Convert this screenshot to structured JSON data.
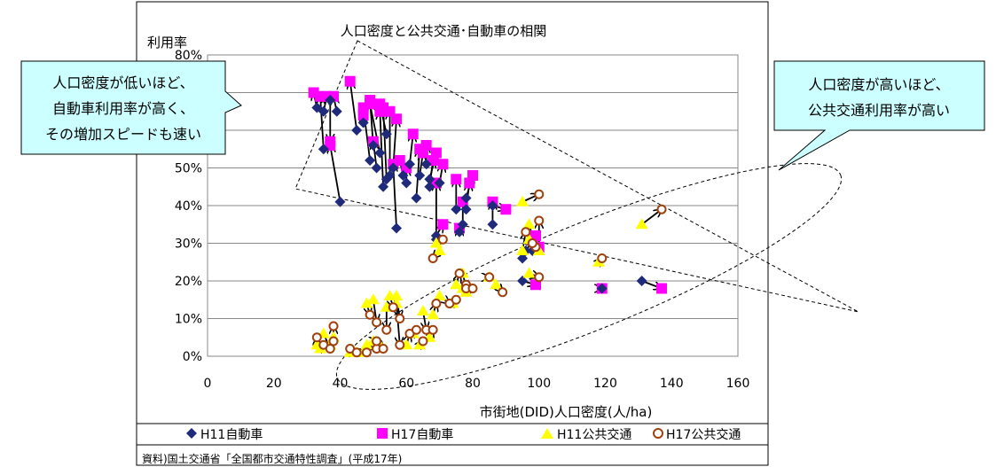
{
  "chart_data": {
    "type": "scatter",
    "title": "人口密度と公共交通･自動車の相関",
    "xlabel": "市街地(DID)人口密度(人/ha)",
    "ylabel": "利用率",
    "xlim": [
      0,
      160
    ],
    "ylim": [
      0,
      80
    ],
    "x_ticks": [
      "0",
      "20",
      "40",
      "60",
      "80",
      "100",
      "120",
      "140",
      "160"
    ],
    "y_ticks": [
      "0%",
      "10%",
      "20%",
      "30%",
      "40%",
      "50%",
      "60%",
      "70%",
      "80%"
    ],
    "grid": "horizontal",
    "legend": [
      "H11自動車",
      "H17自動車",
      "H11公共交通",
      "H17公共交通"
    ],
    "source_note": "資料)国土交通省「全国都市交通特性調査」(平成17年)",
    "callouts": {
      "left": [
        "人口密度が低いほど、",
        "自動車利用率が高く、",
        "その増加スピードも速い"
      ],
      "right": [
        "人口密度が高いほど、",
        "公共交通利用率が高い"
      ]
    },
    "colors": {
      "h11_car": "#1f2a7a",
      "h17_car": "#ff00ff",
      "h11_transit": "#ffff00",
      "h17_transit": "#a0410d",
      "callout_fill": "#ccffff"
    },
    "car_pairs": [
      [
        33,
        66,
        32,
        70
      ],
      [
        35,
        55,
        34,
        69
      ],
      [
        35,
        65,
        36,
        69
      ],
      [
        37,
        68,
        37,
        57
      ],
      [
        39,
        65,
        38,
        69
      ],
      [
        40,
        41,
        37,
        56
      ],
      [
        45,
        60,
        43,
        73
      ],
      [
        47,
        62,
        47,
        64
      ],
      [
        49,
        52,
        47,
        66
      ],
      [
        50,
        56,
        49,
        68
      ],
      [
        51,
        50,
        50,
        57
      ],
      [
        52,
        54,
        49,
        67
      ],
      [
        53,
        45,
        52,
        65
      ],
      [
        54,
        59,
        52,
        67
      ],
      [
        54,
        47,
        53,
        66
      ],
      [
        55,
        48,
        55,
        65
      ],
      [
        56,
        50,
        57,
        63
      ],
      [
        57,
        34,
        56,
        51
      ],
      [
        59,
        48,
        58,
        52
      ],
      [
        60,
        46,
        60,
        50
      ],
      [
        61,
        51,
        62,
        59
      ],
      [
        63,
        42,
        64,
        55
      ],
      [
        64,
        48,
        65,
        54
      ],
      [
        66,
        51,
        66,
        56
      ],
      [
        67,
        45,
        68,
        52
      ],
      [
        67,
        47,
        69,
        54
      ],
      [
        69,
        31,
        69,
        46
      ],
      [
        70,
        46,
        71,
        51
      ],
      [
        69,
        32,
        71,
        35
      ],
      [
        75,
        39,
        75,
        47
      ],
      [
        76,
        33,
        76,
        34
      ],
      [
        77,
        35,
        77,
        41
      ],
      [
        78,
        39,
        79,
        46
      ],
      [
        78,
        42,
        80,
        48
      ],
      [
        86,
        35,
        86,
        41
      ],
      [
        86,
        40,
        90,
        39
      ],
      [
        95,
        20,
        99,
        19
      ],
      [
        95,
        26,
        98,
        31
      ],
      [
        96,
        28,
        99,
        32
      ],
      [
        98,
        28,
        100,
        29
      ],
      [
        119,
        18,
        119,
        18
      ],
      [
        131,
        20,
        137,
        18
      ]
    ],
    "transit_pairs": [
      [
        33,
        3,
        33,
        5
      ],
      [
        34,
        2,
        35,
        3
      ],
      [
        35,
        6,
        37,
        2
      ],
      [
        37,
        3,
        38,
        4
      ],
      [
        38,
        5,
        38,
        8
      ],
      [
        43,
        1,
        43,
        2
      ],
      [
        45,
        1,
        45,
        1
      ],
      [
        47,
        1,
        48,
        1
      ],
      [
        48,
        3,
        51,
        2
      ],
      [
        48,
        14,
        49,
        11
      ],
      [
        50,
        4,
        51,
        4
      ],
      [
        50,
        15,
        51,
        9
      ],
      [
        52,
        3,
        53,
        2
      ],
      [
        54,
        13,
        54,
        7
      ],
      [
        55,
        16,
        56,
        13
      ],
      [
        57,
        16,
        58,
        10
      ],
      [
        57,
        14,
        58,
        3
      ],
      [
        60,
        3,
        61,
        6
      ],
      [
        62,
        6,
        63,
        7
      ],
      [
        64,
        3,
        65,
        4
      ],
      [
        65,
        12,
        66,
        7
      ],
      [
        67,
        5,
        68,
        7
      ],
      [
        68,
        11,
        69,
        14
      ],
      [
        70,
        16,
        73,
        14
      ],
      [
        74,
        14,
        75,
        15
      ],
      [
        75,
        19,
        76,
        22
      ],
      [
        77,
        18,
        78,
        19
      ],
      [
        77,
        22,
        78,
        18
      ],
      [
        78,
        17,
        80,
        18
      ],
      [
        85,
        21,
        85,
        21
      ],
      [
        87,
        19,
        89,
        17
      ],
      [
        70,
        28,
        68,
        26
      ],
      [
        69,
        30,
        71,
        31
      ],
      [
        95,
        28,
        96,
        33
      ],
      [
        95,
        41,
        100,
        43
      ],
      [
        97,
        35,
        99,
        29
      ],
      [
        97,
        22,
        100,
        21
      ],
      [
        97,
        31,
        98,
        30
      ],
      [
        100,
        28,
        100,
        36
      ],
      [
        118,
        25,
        119,
        26
      ],
      [
        131,
        35,
        137,
        39
      ]
    ]
  }
}
